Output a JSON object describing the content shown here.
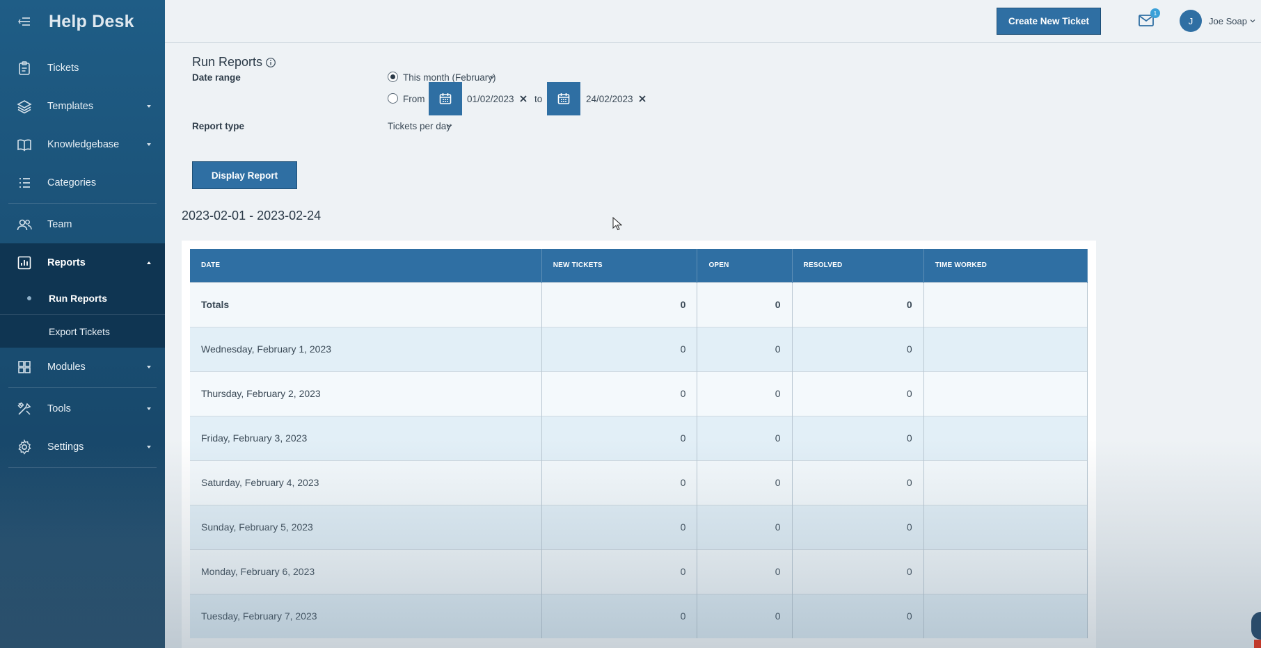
{
  "sidebar": {
    "title": "Help Desk",
    "items": [
      {
        "label": "Tickets",
        "icon": "clipboard-icon"
      },
      {
        "label": "Templates",
        "icon": "layers-icon"
      },
      {
        "label": "Knowledgebase",
        "icon": "book-icon"
      },
      {
        "label": "Categories",
        "icon": "list-icon"
      },
      {
        "label": "Team",
        "icon": "users-icon"
      },
      {
        "label": "Reports",
        "icon": "bar-chart-icon"
      },
      {
        "label": "Modules",
        "icon": "grid-icon"
      },
      {
        "label": "Tools",
        "icon": "tools-icon"
      },
      {
        "label": "Settings",
        "icon": "gear-icon"
      }
    ],
    "sub_items": [
      {
        "label": "Run Reports"
      },
      {
        "label": "Export Tickets"
      }
    ]
  },
  "header": {
    "create_label": "Create New Ticket",
    "mail_badge": "1",
    "user_initial": "J",
    "user_name": "Joe Soap"
  },
  "report": {
    "title": "Run Reports",
    "date_range_label": "Date range",
    "option_month": "This month (February)",
    "option_from": "From",
    "from_date": "01/02/2023",
    "to_label": "to",
    "to_date": "24/02/2023",
    "report_type_label": "Report type",
    "report_type_value": "Tickets per day",
    "display_label": "Display Report",
    "range_heading": "2023-02-01 - 2023-02-24"
  },
  "table": {
    "columns": [
      "DATE",
      "NEW TICKETS",
      "OPEN",
      "RESOLVED",
      "TIME WORKED"
    ],
    "rows": [
      {
        "date": "Totals",
        "new": "0",
        "open": "0",
        "resolved": "0",
        "time": ""
      },
      {
        "date": "Wednesday, February 1, 2023",
        "new": "0",
        "open": "0",
        "resolved": "0",
        "time": ""
      },
      {
        "date": "Thursday, February 2, 2023",
        "new": "0",
        "open": "0",
        "resolved": "0",
        "time": ""
      },
      {
        "date": "Friday, February 3, 2023",
        "new": "0",
        "open": "0",
        "resolved": "0",
        "time": ""
      },
      {
        "date": "Saturday, February 4, 2023",
        "new": "0",
        "open": "0",
        "resolved": "0",
        "time": ""
      },
      {
        "date": "Sunday, February 5, 2023",
        "new": "0",
        "open": "0",
        "resolved": "0",
        "time": ""
      },
      {
        "date": "Monday, February 6, 2023",
        "new": "0",
        "open": "0",
        "resolved": "0",
        "time": ""
      },
      {
        "date": "Tuesday, February 7, 2023",
        "new": "0",
        "open": "0",
        "resolved": "0",
        "time": ""
      }
    ]
  }
}
